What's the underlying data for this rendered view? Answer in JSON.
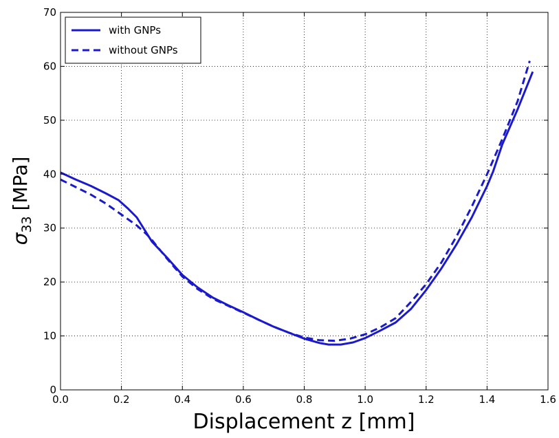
{
  "chart_data": {
    "type": "line",
    "xlabel": "Displacement z [mm]",
    "ylabel_symbol": "σ",
    "ylabel_subscript": "33",
    "ylabel_unit": "[MPa]",
    "xlim": [
      0.0,
      1.6
    ],
    "ylim": [
      0,
      70
    ],
    "xticks": [
      "0.0",
      "0.2",
      "0.4",
      "0.6",
      "0.8",
      "1.0",
      "1.2",
      "1.4",
      "1.6"
    ],
    "yticks": [
      "0",
      "10",
      "20",
      "30",
      "40",
      "50",
      "60",
      "70"
    ],
    "grid": true,
    "legend_position": "top-left",
    "colors": {
      "series": "#1a1acc"
    },
    "series": [
      {
        "name": "with GNPs",
        "style": "solid",
        "x": [
          0.0,
          0.05,
          0.1,
          0.15,
          0.19,
          0.22,
          0.25,
          0.27,
          0.3,
          0.35,
          0.4,
          0.45,
          0.5,
          0.55,
          0.6,
          0.65,
          0.7,
          0.75,
          0.8,
          0.85,
          0.88,
          0.92,
          0.96,
          1.0,
          1.05,
          1.1,
          1.15,
          1.2,
          1.25,
          1.3,
          1.35,
          1.4,
          1.42,
          1.45,
          1.5,
          1.55
        ],
        "y": [
          40.3,
          39.0,
          37.8,
          36.4,
          35.2,
          33.7,
          32.0,
          30.2,
          27.5,
          24.5,
          21.3,
          19.0,
          17.1,
          15.7,
          14.4,
          13.0,
          11.7,
          10.6,
          9.5,
          8.7,
          8.4,
          8.4,
          8.8,
          9.6,
          11.0,
          12.5,
          15.0,
          18.5,
          22.5,
          27.0,
          32.0,
          37.8,
          40.5,
          45.5,
          52.0,
          59.0
        ]
      },
      {
        "name": "without GNPs",
        "style": "dashed",
        "x": [
          0.0,
          0.05,
          0.1,
          0.15,
          0.2,
          0.25,
          0.28,
          0.3,
          0.35,
          0.4,
          0.45,
          0.5,
          0.55,
          0.6,
          0.65,
          0.7,
          0.75,
          0.8,
          0.85,
          0.9,
          0.95,
          1.0,
          1.05,
          1.1,
          1.15,
          1.2,
          1.25,
          1.3,
          1.35,
          1.4,
          1.45,
          1.5,
          1.54
        ],
        "y": [
          39.0,
          37.6,
          36.2,
          34.5,
          32.5,
          30.5,
          29.0,
          27.8,
          24.3,
          21.0,
          18.7,
          16.9,
          15.6,
          14.3,
          13.0,
          11.7,
          10.6,
          9.7,
          9.2,
          9.1,
          9.5,
          10.3,
          11.6,
          13.3,
          16.3,
          19.6,
          23.6,
          28.5,
          34.0,
          40.0,
          46.5,
          53.5,
          61.0
        ]
      }
    ]
  }
}
